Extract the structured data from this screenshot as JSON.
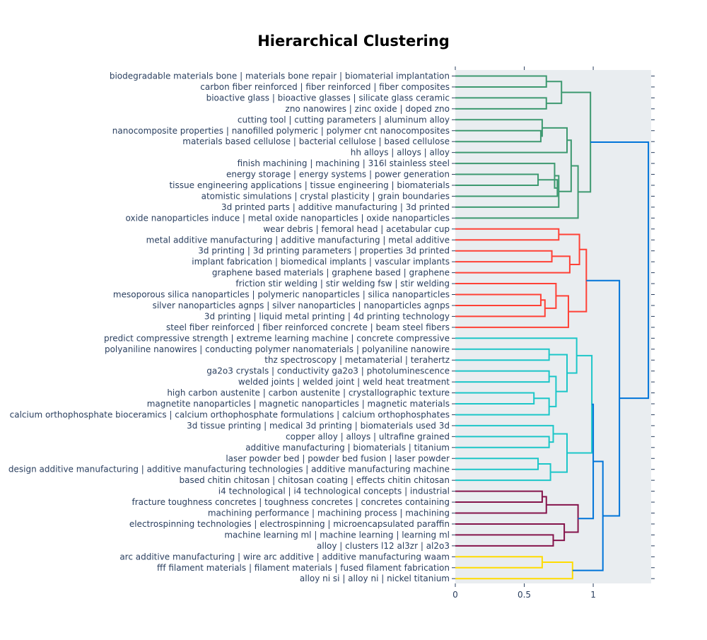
{
  "chart_data": {
    "type": "dendrogram",
    "title": "Hierarchical Clustering",
    "orientation": "left",
    "xlim": [
      0,
      1.42
    ],
    "x_ticks": [
      0,
      0.5,
      1
    ],
    "x_tick_labels": [
      "0",
      "0.5",
      "1"
    ],
    "xlabel": "",
    "ylabel": "",
    "grid": false,
    "leaves": [
      "biodegradable materials bone | materials bone repair | biomaterial implantation",
      "carbon fiber reinforced | fiber reinforced | fiber composites",
      "bioactive glass | bioactive glasses | silicate glass ceramic",
      "zno nanowires | zinc oxide | doped zno",
      "cutting tool | cutting parameters | aluminum alloy",
      "nanocomposite properties | nanofilled polymeric | polymer cnt nanocomposites",
      "materials based cellulose | bacterial cellulose | based cellulose",
      "hh alloys | alloys | alloy",
      "finish machining | machining | 316l stainless steel",
      "energy storage | energy systems | power generation",
      "tissue engineering applications | tissue engineering | biomaterials",
      "atomistic simulations | crystal plasticity | grain boundaries",
      "3d printed parts | additive manufacturing | 3d printed",
      "oxide nanoparticles induce | metal oxide nanoparticles | oxide nanoparticles",
      "wear debris | femoral head | acetabular cup",
      "metal additive manufacturing | additive manufacturing | metal additive",
      "3d printing | 3d printing parameters | properties 3d printed",
      "implant fabrication | biomedical implants | vascular implants",
      "graphene based materials | graphene based | graphene",
      "friction stir welding | stir welding fsw | stir welding",
      "mesoporous silica nanoparticles | polymeric nanoparticles | silica nanoparticles",
      "silver nanoparticles agnps | silver nanoparticles | nanoparticles agnps",
      "3d printing | liquid metal printing | 4d printing technology",
      "steel fiber reinforced | fiber reinforced concrete | beam steel fibers",
      "predict compressive strength | extreme learning machine | concrete compressive",
      "polyaniline nanowires | conducting polymer nanomaterials | polyaniline nanowire",
      "thz spectroscopy | metamaterial | terahertz",
      "ga2o3 crystals | conductivity ga2o3 | photoluminescence",
      "welded joints | welded joint | weld heat treatment",
      "high carbon austenite | carbon austenite | crystallographic texture",
      "magnetite nanoparticles | magnetic nanoparticles | magnetic materials",
      "calcium orthophosphate bioceramics | calcium orthophosphate formulations | calcium orthophosphates",
      "3d tissue printing | medical 3d printing | biomaterials used 3d",
      "copper alloy | alloys | ultrafine grained",
      "additive manufacturing | biomaterials | titanium",
      "laser powder bed | powder bed fusion | laser powder",
      "design additive manufacturing | additive manufacturing technologies | additive manufacturing machine",
      "based chitin chitosan | chitosan coating | effects chitin chitosan",
      "i4 technological | i4 technological concepts | industrial",
      "fracture toughness concretes | toughness concretes | concretes containing",
      "machining performance | machining process | machining",
      "electrospinning technologies | electrospinning | microencapsulated paraffin",
      "machine learning ml | machine learning | learning ml",
      "alloy | clusters l12 al3zr | al2o3",
      "arc additive manufacturing | wire arc additive | additive manufacturing waam",
      "fff filament materials | filament materials | fused filament fabrication",
      "alloy ni si | alloy ni | nickel titanium"
    ],
    "colors": {
      "green": "#3d9970",
      "red": "#ff4136",
      "cyan": "#1cc6c8",
      "purple": "#85144b",
      "yellow": "#ffdc00",
      "blue": "#0074d9",
      "plot_bg": "#e9edf0",
      "label": "#2a3f5f"
    },
    "merges": [
      {
        "id": "g1",
        "left": 0,
        "right": 1,
        "height": 0.66,
        "color": "green"
      },
      {
        "id": "g2",
        "left": 2,
        "right": 3,
        "height": 0.66,
        "color": "green"
      },
      {
        "id": "g3",
        "left": "g1",
        "right": "g2",
        "height": 0.77,
        "color": "green"
      },
      {
        "id": "g4",
        "left": 5,
        "right": 6,
        "height": 0.62,
        "color": "green"
      },
      {
        "id": "g5",
        "left": 4,
        "right": "g4",
        "height": 0.63,
        "color": "green"
      },
      {
        "id": "g6",
        "left": "g5",
        "right": 7,
        "height": 0.81,
        "color": "green"
      },
      {
        "id": "g7",
        "left": 9,
        "right": 10,
        "height": 0.6,
        "color": "green"
      },
      {
        "id": "g8",
        "left": "g7",
        "right": 11,
        "height": 0.74,
        "color": "green"
      },
      {
        "id": "g9",
        "left": 8,
        "right": "g8",
        "height": 0.72,
        "color": "green"
      },
      {
        "id": "g10",
        "left": "g9",
        "right": 12,
        "height": 0.75,
        "color": "green"
      },
      {
        "id": "g11",
        "left": "g6",
        "right": "g10",
        "height": 0.84,
        "color": "green"
      },
      {
        "id": "g12",
        "left": "g11",
        "right": 13,
        "height": 0.89,
        "color": "green"
      },
      {
        "id": "g13",
        "left": "g3",
        "right": "g12",
        "height": 0.98,
        "color": "green"
      },
      {
        "id": "r1",
        "left": 14,
        "right": 15,
        "height": 0.75,
        "color": "red"
      },
      {
        "id": "r2",
        "left": 16,
        "right": 17,
        "height": 0.7,
        "color": "red"
      },
      {
        "id": "r3",
        "left": "r2",
        "right": 18,
        "height": 0.83,
        "color": "red"
      },
      {
        "id": "r4",
        "left": "r1",
        "right": "r3",
        "height": 0.9,
        "color": "red"
      },
      {
        "id": "r5",
        "left": 20,
        "right": 21,
        "height": 0.62,
        "color": "red"
      },
      {
        "id": "r6",
        "left": "r5",
        "right": 22,
        "height": 0.65,
        "color": "red"
      },
      {
        "id": "r7",
        "left": 19,
        "right": "r6",
        "height": 0.73,
        "color": "red"
      },
      {
        "id": "r8",
        "left": "r7",
        "right": 23,
        "height": 0.82,
        "color": "red"
      },
      {
        "id": "r9",
        "left": "r4",
        "right": "r8",
        "height": 0.95,
        "color": "red"
      },
      {
        "id": "c1",
        "left": 25,
        "right": 26,
        "height": 0.68,
        "color": "cyan"
      },
      {
        "id": "c2",
        "left": 27,
        "right": 28,
        "height": 0.68,
        "color": "cyan"
      },
      {
        "id": "c3",
        "left": 29,
        "right": 30,
        "height": 0.57,
        "color": "cyan"
      },
      {
        "id": "c4",
        "left": "c3",
        "right": 31,
        "height": 0.68,
        "color": "cyan"
      },
      {
        "id": "c5",
        "left": "c2",
        "right": "c4",
        "height": 0.73,
        "color": "cyan"
      },
      {
        "id": "c6",
        "left": "c1",
        "right": "c5",
        "height": 0.81,
        "color": "cyan"
      },
      {
        "id": "c7",
        "left": 24,
        "right": "c6",
        "height": 0.88,
        "color": "cyan"
      },
      {
        "id": "c8",
        "left": 33,
        "right": 34,
        "height": 0.68,
        "color": "cyan"
      },
      {
        "id": "c9",
        "left": 32,
        "right": "c8",
        "height": 0.71,
        "color": "cyan"
      },
      {
        "id": "c10",
        "left": 35,
        "right": 36,
        "height": 0.6,
        "color": "cyan"
      },
      {
        "id": "c11",
        "left": "c10",
        "right": 37,
        "height": 0.69,
        "color": "cyan"
      },
      {
        "id": "c12",
        "left": "c9",
        "right": "c11",
        "height": 0.81,
        "color": "cyan"
      },
      {
        "id": "c13",
        "left": "c7",
        "right": "c12",
        "height": 0.99,
        "color": "cyan"
      },
      {
        "id": "p1",
        "left": 38,
        "right": 39,
        "height": 0.63,
        "color": "purple"
      },
      {
        "id": "p2",
        "left": "p1",
        "right": 40,
        "height": 0.66,
        "color": "purple"
      },
      {
        "id": "p3",
        "left": 42,
        "right": 43,
        "height": 0.71,
        "color": "purple"
      },
      {
        "id": "p4",
        "left": 41,
        "right": "p3",
        "height": 0.79,
        "color": "purple"
      },
      {
        "id": "p5",
        "left": "p2",
        "right": "p4",
        "height": 0.89,
        "color": "purple"
      },
      {
        "id": "y1",
        "left": 44,
        "right": 45,
        "height": 0.63,
        "color": "yellow"
      },
      {
        "id": "y2",
        "left": "y1",
        "right": 46,
        "height": 0.85,
        "color": "yellow"
      },
      {
        "id": "b1",
        "left": "c13",
        "right": "p5",
        "height": 1.0,
        "color": "blue"
      },
      {
        "id": "b2",
        "left": "b1",
        "right": "y2",
        "height": 1.07,
        "color": "blue"
      },
      {
        "id": "b3",
        "left": "r9",
        "right": "b2",
        "height": 1.19,
        "color": "blue"
      },
      {
        "id": "b4",
        "left": "g13",
        "right": "b3",
        "height": 1.4,
        "color": "blue"
      }
    ]
  }
}
